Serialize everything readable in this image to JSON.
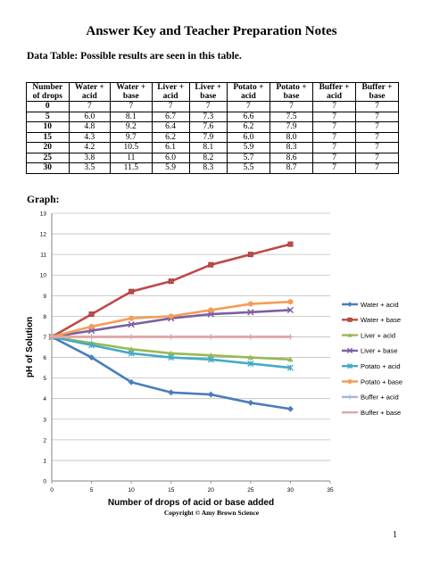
{
  "title": "Answer Key and Teacher Preparation Notes",
  "data_table_label": "Data Table:  Possible results are seen in this table.",
  "table": {
    "headers": [
      [
        "Number",
        "of drops"
      ],
      [
        "Water +",
        "acid"
      ],
      [
        "Water +",
        "base"
      ],
      [
        "Liver +",
        "acid"
      ],
      [
        "Liver +",
        "base"
      ],
      [
        "Potato +",
        "acid"
      ],
      [
        "Potato +",
        "base"
      ],
      [
        "Buffer +",
        "acid"
      ],
      [
        "Buffer +",
        "base"
      ]
    ],
    "rows": [
      [
        "0",
        "7",
        "7",
        "7",
        "7",
        "7",
        "7",
        "7",
        "7"
      ],
      [
        "5",
        "6.0",
        "8.1",
        "6.7",
        "7.3",
        "6.6",
        "7.5",
        "7",
        "7"
      ],
      [
        "10",
        "4.8",
        "9.2",
        "6.4",
        "7.6",
        "6.2",
        "7.9",
        "7",
        "7"
      ],
      [
        "15",
        "4.3",
        "9.7",
        "6.2",
        "7.9",
        "6.0",
        "8.0",
        "7",
        "7"
      ],
      [
        "20",
        "4.2",
        "10.5",
        "6.1",
        "8.1",
        "5.9",
        "8.3",
        "7",
        "7"
      ],
      [
        "25",
        "3.8",
        "11",
        "6.0",
        "8.2",
        "5.7",
        "8.6",
        "7",
        "7"
      ],
      [
        "30",
        "3.5",
        "11.5",
        "5.9",
        "8.3",
        "5.5",
        "8.7",
        "7",
        "7"
      ]
    ]
  },
  "graph_label": "Graph:",
  "chart_data": {
    "type": "line",
    "xlabel": "Number of drops of acid or base added",
    "ylabel": "pH of Solution",
    "xlim": [
      0,
      35
    ],
    "ylim": [
      0,
      13
    ],
    "xticks": [
      0,
      5,
      10,
      15,
      20,
      25,
      30,
      35
    ],
    "yticks": [
      0,
      1,
      2,
      3,
      4,
      5,
      6,
      7,
      8,
      9,
      10,
      11,
      12,
      13
    ],
    "grid": true,
    "legend_position": "right",
    "x": [
      0,
      5,
      10,
      15,
      20,
      25,
      30
    ],
    "series": [
      {
        "name": "Water + acid",
        "values": [
          7,
          6.0,
          4.8,
          4.3,
          4.2,
          3.8,
          3.5
        ],
        "color": "#4a7ebb",
        "marker": "diamond"
      },
      {
        "name": "Water + base",
        "values": [
          7,
          8.1,
          9.2,
          9.7,
          10.5,
          11,
          11.5
        ],
        "color": "#be4b48",
        "marker": "square"
      },
      {
        "name": "Liver + acid",
        "values": [
          7,
          6.7,
          6.4,
          6.2,
          6.1,
          6.0,
          5.9
        ],
        "color": "#98b954",
        "marker": "triangle"
      },
      {
        "name": "Liver + base",
        "values": [
          7,
          7.3,
          7.6,
          7.9,
          8.1,
          8.2,
          8.3
        ],
        "color": "#7d5fa0",
        "marker": "x"
      },
      {
        "name": "Potato + acid",
        "values": [
          7,
          6.6,
          6.2,
          6.0,
          5.9,
          5.7,
          5.5
        ],
        "color": "#46aac5",
        "marker": "star"
      },
      {
        "name": "Potato + base",
        "values": [
          7,
          7.5,
          7.9,
          8.0,
          8.3,
          8.6,
          8.7
        ],
        "color": "#f59d56",
        "marker": "circle"
      },
      {
        "name": "Buffer + acid",
        "values": [
          7,
          7,
          7,
          7,
          7,
          7,
          7
        ],
        "color": "#a4b5db",
        "marker": "plus"
      },
      {
        "name": "Buffer + base",
        "values": [
          7,
          7,
          7,
          7,
          7,
          7,
          7
        ],
        "color": "#e6a4a2",
        "marker": "line"
      }
    ]
  },
  "footer": "Copyright © Amy Brown Science",
  "page_number": "1"
}
